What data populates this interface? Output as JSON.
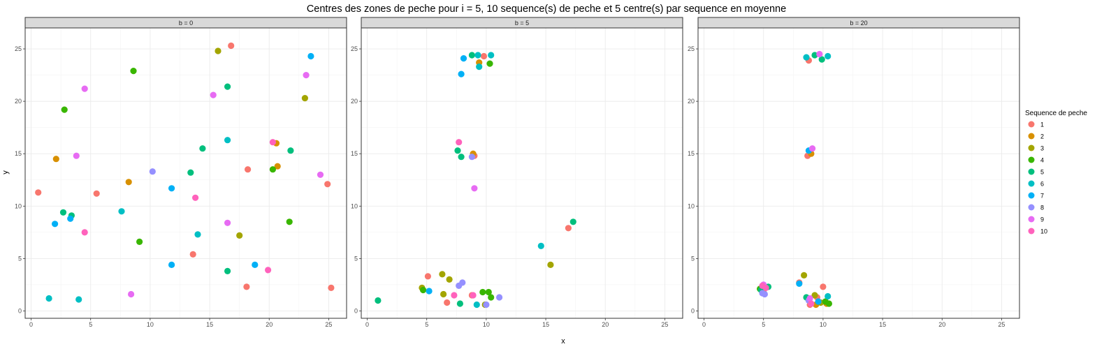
{
  "chart_data": {
    "type": "scatter",
    "title": "Centres des zones de peche pour i = 5, 10 sequence(s) de peche et 5 centre(s) par sequence en moyenne",
    "xlabel": "x",
    "ylabel": "y",
    "xlim": [
      -0.5,
      26.5
    ],
    "ylim": [
      -0.7,
      27.0
    ],
    "x_ticks": [
      0,
      5,
      10,
      15,
      20,
      25
    ],
    "y_ticks": [
      0,
      5,
      10,
      15,
      20,
      25
    ],
    "grid": true,
    "legend": {
      "title": "Sequence de peche",
      "position": "right",
      "entries": [
        {
          "label": "1",
          "color": "#F8766D"
        },
        {
          "label": "2",
          "color": "#D89000"
        },
        {
          "label": "3",
          "color": "#A3A500"
        },
        {
          "label": "4",
          "color": "#39B600"
        },
        {
          "label": "5",
          "color": "#00BF7D"
        },
        {
          "label": "6",
          "color": "#00BFC4"
        },
        {
          "label": "7",
          "color": "#00B0F6"
        },
        {
          "label": "8",
          "color": "#9590FF"
        },
        {
          "label": "9",
          "color": "#E76BF3"
        },
        {
          "label": "10",
          "color": "#FF62BC"
        }
      ]
    },
    "facets": [
      {
        "label": "b = 0",
        "points": [
          {
            "x": 0.6,
            "y": 11.3,
            "s": 1
          },
          {
            "x": 16.8,
            "y": 25.3,
            "s": 1
          },
          {
            "x": 18.2,
            "y": 13.5,
            "s": 1
          },
          {
            "x": 24.9,
            "y": 12.1,
            "s": 1
          },
          {
            "x": 13.6,
            "y": 5.4,
            "s": 1
          },
          {
            "x": 18.1,
            "y": 2.3,
            "s": 1
          },
          {
            "x": 25.2,
            "y": 2.2,
            "s": 1
          },
          {
            "x": 5.5,
            "y": 11.2,
            "s": 1
          },
          {
            "x": 2.1,
            "y": 14.5,
            "s": 2
          },
          {
            "x": 8.2,
            "y": 12.3,
            "s": 2
          },
          {
            "x": 20.6,
            "y": 16.0,
            "s": 2
          },
          {
            "x": 20.7,
            "y": 13.8,
            "s": 2
          },
          {
            "x": 15.7,
            "y": 24.8,
            "s": 3
          },
          {
            "x": 23.0,
            "y": 20.3,
            "s": 3
          },
          {
            "x": 17.5,
            "y": 7.2,
            "s": 3
          },
          {
            "x": 8.6,
            "y": 22.9,
            "s": 4
          },
          {
            "x": 2.8,
            "y": 19.2,
            "s": 4
          },
          {
            "x": 9.1,
            "y": 6.6,
            "s": 4
          },
          {
            "x": 20.3,
            "y": 13.5,
            "s": 4
          },
          {
            "x": 21.7,
            "y": 8.5,
            "s": 4
          },
          {
            "x": 16.5,
            "y": 21.4,
            "s": 5
          },
          {
            "x": 14.4,
            "y": 15.5,
            "s": 5
          },
          {
            "x": 13.4,
            "y": 13.2,
            "s": 5
          },
          {
            "x": 2.7,
            "y": 9.4,
            "s": 5
          },
          {
            "x": 3.4,
            "y": 9.1,
            "s": 5
          },
          {
            "x": 21.8,
            "y": 15.3,
            "s": 5
          },
          {
            "x": 16.5,
            "y": 3.8,
            "s": 5
          },
          {
            "x": 16.5,
            "y": 16.3,
            "s": 6
          },
          {
            "x": 7.6,
            "y": 9.5,
            "s": 6
          },
          {
            "x": 14.0,
            "y": 7.3,
            "s": 6
          },
          {
            "x": 1.5,
            "y": 1.2,
            "s": 6
          },
          {
            "x": 4.0,
            "y": 1.1,
            "s": 6
          },
          {
            "x": 23.5,
            "y": 24.3,
            "s": 7
          },
          {
            "x": 2.0,
            "y": 8.3,
            "s": 7
          },
          {
            "x": 3.3,
            "y": 8.8,
            "s": 7
          },
          {
            "x": 11.8,
            "y": 11.7,
            "s": 7
          },
          {
            "x": 11.8,
            "y": 4.4,
            "s": 7
          },
          {
            "x": 18.8,
            "y": 4.4,
            "s": 7
          },
          {
            "x": 10.2,
            "y": 13.3,
            "s": 8
          },
          {
            "x": 4.5,
            "y": 21.2,
            "s": 9
          },
          {
            "x": 15.3,
            "y": 20.6,
            "s": 9
          },
          {
            "x": 3.8,
            "y": 14.8,
            "s": 9
          },
          {
            "x": 23.1,
            "y": 22.5,
            "s": 9
          },
          {
            "x": 24.3,
            "y": 13.0,
            "s": 9
          },
          {
            "x": 16.5,
            "y": 8.4,
            "s": 9
          },
          {
            "x": 8.4,
            "y": 1.6,
            "s": 9
          },
          {
            "x": 20.3,
            "y": 16.1,
            "s": 10
          },
          {
            "x": 13.8,
            "y": 10.8,
            "s": 10
          },
          {
            "x": 4.5,
            "y": 7.5,
            "s": 10
          },
          {
            "x": 19.9,
            "y": 3.9,
            "s": 10
          }
        ]
      },
      {
        "label": "b = 5",
        "points": [
          {
            "x": 9.8,
            "y": 24.3,
            "s": 1
          },
          {
            "x": 16.9,
            "y": 7.9,
            "s": 1
          },
          {
            "x": 5.1,
            "y": 3.3,
            "s": 1
          },
          {
            "x": 6.7,
            "y": 0.8,
            "s": 1
          },
          {
            "x": 8.8,
            "y": 1.5,
            "s": 1
          },
          {
            "x": 9.0,
            "y": 14.8,
            "s": 1
          },
          {
            "x": 9.4,
            "y": 23.7,
            "s": 2
          },
          {
            "x": 8.9,
            "y": 15.0,
            "s": 2
          },
          {
            "x": 15.4,
            "y": 4.4,
            "s": 3
          },
          {
            "x": 6.3,
            "y": 3.5,
            "s": 3
          },
          {
            "x": 6.9,
            "y": 3.0,
            "s": 3
          },
          {
            "x": 6.4,
            "y": 1.6,
            "s": 3
          },
          {
            "x": 4.6,
            "y": 2.2,
            "s": 3
          },
          {
            "x": 9.9,
            "y": 0.6,
            "s": 3
          },
          {
            "x": 10.3,
            "y": 23.6,
            "s": 4
          },
          {
            "x": 4.7,
            "y": 2.0,
            "s": 4
          },
          {
            "x": 9.7,
            "y": 1.8,
            "s": 4
          },
          {
            "x": 10.2,
            "y": 1.8,
            "s": 4
          },
          {
            "x": 10.4,
            "y": 1.3,
            "s": 4
          },
          {
            "x": 8.8,
            "y": 24.4,
            "s": 5
          },
          {
            "x": 7.6,
            "y": 15.3,
            "s": 5
          },
          {
            "x": 7.9,
            "y": 14.7,
            "s": 5
          },
          {
            "x": 17.3,
            "y": 8.5,
            "s": 5
          },
          {
            "x": 0.9,
            "y": 1.0,
            "s": 5
          },
          {
            "x": 7.8,
            "y": 0.7,
            "s": 5
          },
          {
            "x": 9.3,
            "y": 24.4,
            "s": 6
          },
          {
            "x": 10.4,
            "y": 24.4,
            "s": 6
          },
          {
            "x": 9.4,
            "y": 23.3,
            "s": 6
          },
          {
            "x": 14.6,
            "y": 6.2,
            "s": 6
          },
          {
            "x": 9.2,
            "y": 0.6,
            "s": 6
          },
          {
            "x": 8.1,
            "y": 24.1,
            "s": 7
          },
          {
            "x": 7.9,
            "y": 22.6,
            "s": 7
          },
          {
            "x": 5.2,
            "y": 1.9,
            "s": 7
          },
          {
            "x": 8.8,
            "y": 14.7,
            "s": 8
          },
          {
            "x": 7.7,
            "y": 2.4,
            "s": 8
          },
          {
            "x": 8.0,
            "y": 2.7,
            "s": 8
          },
          {
            "x": 11.1,
            "y": 1.3,
            "s": 8
          },
          {
            "x": 10.0,
            "y": 0.6,
            "s": 8
          },
          {
            "x": 9.0,
            "y": 11.7,
            "s": 9
          },
          {
            "x": 7.7,
            "y": 16.1,
            "s": 10
          },
          {
            "x": 7.3,
            "y": 1.5,
            "s": 10
          },
          {
            "x": 8.9,
            "y": 1.5,
            "s": 10
          }
        ]
      },
      {
        "label": "b = 20",
        "points": [
          {
            "x": 8.8,
            "y": 23.9,
            "s": 1
          },
          {
            "x": 8.7,
            "y": 14.8,
            "s": 1
          },
          {
            "x": 8.0,
            "y": 2.7,
            "s": 1
          },
          {
            "x": 10.0,
            "y": 2.3,
            "s": 1
          },
          {
            "x": 8.9,
            "y": 0.6,
            "s": 1
          },
          {
            "x": 9.5,
            "y": 1.3,
            "s": 1
          },
          {
            "x": 9.0,
            "y": 15.0,
            "s": 2
          },
          {
            "x": 5.0,
            "y": 2.0,
            "s": 2
          },
          {
            "x": 9.4,
            "y": 0.6,
            "s": 2
          },
          {
            "x": 10.3,
            "y": 0.7,
            "s": 2
          },
          {
            "x": 8.4,
            "y": 3.4,
            "s": 3
          },
          {
            "x": 9.3,
            "y": 1.5,
            "s": 3
          },
          {
            "x": 9.8,
            "y": 0.8,
            "s": 3
          },
          {
            "x": 4.7,
            "y": 2.1,
            "s": 4
          },
          {
            "x": 10.2,
            "y": 0.9,
            "s": 4
          },
          {
            "x": 10.5,
            "y": 0.7,
            "s": 4
          },
          {
            "x": 9.3,
            "y": 24.4,
            "s": 5
          },
          {
            "x": 9.9,
            "y": 24.0,
            "s": 5
          },
          {
            "x": 5.4,
            "y": 2.3,
            "s": 5
          },
          {
            "x": 4.8,
            "y": 2.0,
            "s": 5
          },
          {
            "x": 8.6,
            "y": 1.3,
            "s": 5
          },
          {
            "x": 8.6,
            "y": 24.2,
            "s": 6
          },
          {
            "x": 10.4,
            "y": 24.3,
            "s": 6
          },
          {
            "x": 10.4,
            "y": 1.4,
            "s": 6
          },
          {
            "x": 8.0,
            "y": 2.6,
            "s": 7
          },
          {
            "x": 8.8,
            "y": 15.3,
            "s": 7
          },
          {
            "x": 9.6,
            "y": 0.9,
            "s": 7
          },
          {
            "x": 4.9,
            "y": 1.7,
            "s": 8
          },
          {
            "x": 5.1,
            "y": 1.6,
            "s": 8
          },
          {
            "x": 8.8,
            "y": 1.0,
            "s": 8
          },
          {
            "x": 9.7,
            "y": 24.5,
            "s": 9
          },
          {
            "x": 9.1,
            "y": 15.5,
            "s": 9
          },
          {
            "x": 5.0,
            "y": 2.5,
            "s": 9
          },
          {
            "x": 8.9,
            "y": 1.2,
            "s": 9
          },
          {
            "x": 4.9,
            "y": 2.4,
            "s": 10
          },
          {
            "x": 5.2,
            "y": 2.2,
            "s": 10
          },
          {
            "x": 9.0,
            "y": 0.7,
            "s": 10
          }
        ]
      }
    ]
  }
}
